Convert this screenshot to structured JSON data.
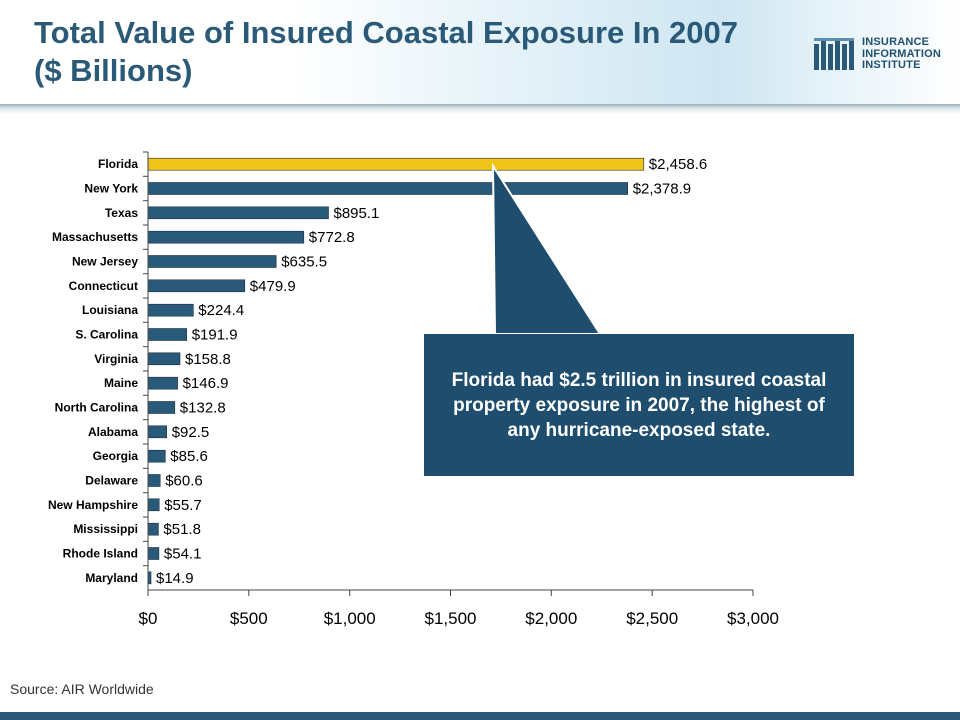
{
  "header": {
    "title_line1": "Total Value of Insured Coastal Exposure In 2007",
    "title_line2": "($ Billions)"
  },
  "logo": {
    "line1": "INSURANCE",
    "line2": "INFORMATION",
    "line3": "INSTITUTE"
  },
  "chart_data": {
    "type": "bar",
    "orientation": "horizontal",
    "title": "Total Value of Insured Coastal Exposure In 2007 ($ Billions)",
    "categories": [
      "Florida",
      "New York",
      "Texas",
      "Massachusetts",
      "New Jersey",
      "Connecticut",
      "Louisiana",
      "S. Carolina",
      "Virginia",
      "Maine",
      "North Carolina",
      "Alabama",
      "Georgia",
      "Delaware",
      "New Hampshire",
      "Mississippi",
      "Rhode Island",
      "Maryland"
    ],
    "values": [
      2458.6,
      2378.9,
      895.1,
      772.8,
      635.5,
      479.9,
      224.4,
      191.9,
      158.8,
      146.9,
      132.8,
      92.5,
      85.6,
      60.6,
      55.7,
      51.8,
      54.1,
      14.9
    ],
    "value_labels": [
      "$2,458.6",
      "$2,378.9",
      "$895.1",
      "$772.8",
      "$635.5",
      "$479.9",
      "$224.4",
      "$191.9",
      "$158.8",
      "$146.9",
      "$132.8",
      "$92.5",
      "$85.6",
      "$60.6",
      "$55.7",
      "$51.8",
      "$54.1",
      "$14.9"
    ],
    "xlim": [
      0,
      3000
    ],
    "xticks": [
      0,
      500,
      1000,
      1500,
      2000,
      2500,
      3000
    ],
    "xtick_labels": [
      "$0",
      "$500",
      "$1,000",
      "$1,500",
      "$2,000",
      "$2,500",
      "$3,000"
    ],
    "xlabel": "",
    "ylabel": "",
    "grid": false,
    "colors": {
      "default": "#2a5a7a",
      "highlight": "#f0c419",
      "highlight_category": "Florida"
    }
  },
  "callout": {
    "text": "Florida had $2.5 trillion in insured coastal property exposure in 2007, the  highest of any hurricane-exposed state."
  },
  "source": "Source: AIR Worldwide"
}
